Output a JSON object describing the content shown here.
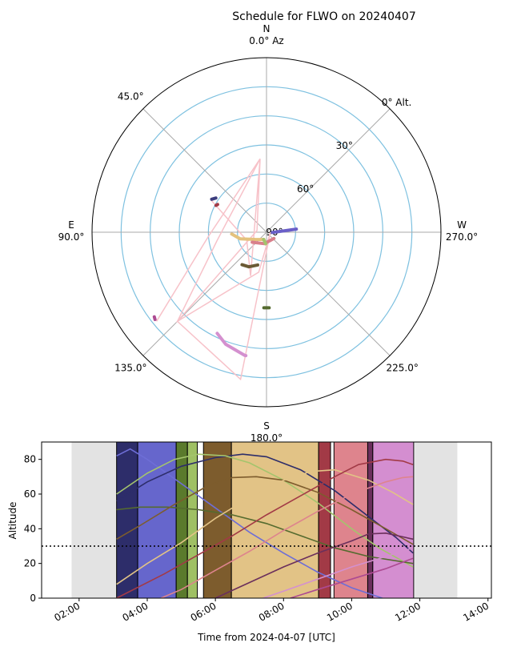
{
  "chart_data": [
    {
      "type": "polar-scatter",
      "title": "Schedule for FLWO on 20240407",
      "azimuth_labels": [
        {
          "az": 0,
          "line1": "N",
          "line2": "0.0° Az"
        },
        {
          "az": 45,
          "line1": "45.0°",
          "line2": ""
        },
        {
          "az": 90,
          "line1": "E",
          "line2": "90.0°"
        },
        {
          "az": 135,
          "line1": "135.0°",
          "line2": ""
        },
        {
          "az": 180,
          "line1": "S",
          "line2": "180.0°"
        },
        {
          "az": 225,
          "line1": "225.0°",
          "line2": ""
        },
        {
          "az": 270,
          "line1": "W",
          "line2": "270.0°"
        }
      ],
      "altitude_labels": [
        {
          "alt": 0,
          "text": "0° Alt."
        },
        {
          "alt": 30,
          "text": "30°"
        },
        {
          "alt": 60,
          "text": "60°"
        },
        {
          "alt": 90,
          "text": "90°"
        }
      ],
      "altitude_rings": [
        0,
        15,
        30,
        45,
        60,
        75
      ],
      "path": [
        {
          "az": 129,
          "alt": 17
        },
        {
          "az": 94,
          "alt": 60
        },
        {
          "az": 5,
          "alt": 52
        },
        {
          "az": 100,
          "alt": 64
        },
        {
          "az": 135,
          "alt": 25
        },
        {
          "az": 169,
          "alt": 69
        },
        {
          "az": 270,
          "alt": 88
        },
        {
          "az": 170,
          "alt": 13
        },
        {
          "az": 135,
          "alt": 25
        },
        {
          "az": 80,
          "alt": 85
        },
        {
          "az": 5,
          "alt": 52
        },
        {
          "az": 160,
          "alt": 66
        },
        {
          "az": 112,
          "alt": 79
        },
        {
          "az": 60,
          "alt": 57
        }
      ],
      "tracks": [
        {
          "color": "#3c3d7e",
          "points": [
            {
              "az": 59,
              "alt": 57
            },
            {
              "az": 56,
              "alt": 58.5
            }
          ]
        },
        {
          "color": "#a23a46",
          "points": [
            {
              "az": 62,
              "alt": 60.5
            },
            {
              "az": 60.5,
              "alt": 61
            }
          ]
        },
        {
          "color": "#6a5fc8",
          "points": [
            {
              "az": 268,
              "alt": 87
            },
            {
              "az": 276,
              "alt": 74.5
            }
          ]
        },
        {
          "color": "#e4c27d",
          "points": [
            {
              "az": 93,
              "alt": 72
            },
            {
              "az": 104,
              "alt": 76
            },
            {
              "az": 122,
              "alt": 83
            },
            {
              "az": 160,
              "alt": 86
            }
          ]
        },
        {
          "color": "#d9808b",
          "points": [
            {
              "az": 125,
              "alt": 81
            },
            {
              "az": 170,
              "alt": 84
            },
            {
              "az": 230,
              "alt": 85
            }
          ]
        },
        {
          "color": "#6b5a35",
          "points": [
            {
              "az": 143,
              "alt": 69
            },
            {
              "az": 153,
              "alt": 70
            },
            {
              "az": 165,
              "alt": 72.5
            }
          ]
        },
        {
          "color": "#a4c46d",
          "points": [
            {
              "az": 158,
              "alt": 86
            },
            {
              "az": 176,
              "alt": 84
            }
          ]
        },
        {
          "color": "#556b2f",
          "points": [
            {
              "az": 182,
              "alt": 51
            },
            {
              "az": 178,
              "alt": 51
            }
          ]
        },
        {
          "color": "#ad4a92",
          "points": [
            {
              "az": 128,
              "alt": 17
            },
            {
              "az": 127,
              "alt": 17.5
            }
          ]
        },
        {
          "color": "#d490cf",
          "points": [
            {
              "az": 154,
              "alt": 32
            },
            {
              "az": 160,
              "alt": 28.5
            },
            {
              "az": 170,
              "alt": 25.5
            },
            {
              "az": 170.5,
              "alt": 25.5
            }
          ]
        }
      ]
    },
    {
      "type": "line",
      "xlabel": "Time from 2024-04-07 [UTC]",
      "ylabel": "Altitude",
      "xlim": [
        0.9,
        14.1
      ],
      "ylim": [
        0,
        90
      ],
      "x_ticks": [
        {
          "value": 2,
          "label": "02:00"
        },
        {
          "value": 4,
          "label": "04:00"
        },
        {
          "value": 6,
          "label": "06:00"
        },
        {
          "value": 8,
          "label": "08:00"
        },
        {
          "value": 10,
          "label": "10:00"
        },
        {
          "value": 12,
          "label": "12:00"
        },
        {
          "value": 14,
          "label": "14:00"
        }
      ],
      "y_ticks": [
        0,
        20,
        40,
        60,
        80
      ],
      "twilight": [
        {
          "start": 1.78,
          "end": 3.1
        },
        {
          "start": 11.85,
          "end": 13.1
        }
      ],
      "blocks": [
        {
          "start": 3.1,
          "end": 3.72,
          "color": "#2d2d6a"
        },
        {
          "start": 3.72,
          "end": 4.85,
          "color": "#6666cc"
        },
        {
          "start": 4.85,
          "end": 5.18,
          "color": "#5a7a2c"
        },
        {
          "start": 5.18,
          "end": 5.47,
          "color": "#9fc064"
        },
        {
          "start": 5.65,
          "end": 6.47,
          "color": "#7d5c2d"
        },
        {
          "start": 6.47,
          "end": 9.03,
          "color": "#e2c386"
        },
        {
          "start": 9.03,
          "end": 9.38,
          "color": "#a23a46"
        },
        {
          "start": 9.48,
          "end": 10.47,
          "color": "#de848d"
        },
        {
          "start": 10.47,
          "end": 10.62,
          "color": "#6b2f5c"
        },
        {
          "start": 10.62,
          "end": 11.82,
          "color": "#d48ed0"
        }
      ],
      "reference_line": 30,
      "series": [
        {
          "color": "#6e6ed6",
          "points": [
            [
              3.1,
              82
            ],
            [
              3.5,
              86
            ],
            [
              4.0,
              80
            ],
            [
              5.0,
              66
            ],
            [
              6.0,
              52
            ],
            [
              7.0,
              38
            ],
            [
              8.0,
              26
            ],
            [
              9.0,
              15
            ],
            [
              10.0,
              6
            ],
            [
              10.9,
              0
            ]
          ]
        },
        {
          "color": "#2d2d6a",
          "points": [
            [
              3.1,
              56
            ],
            [
              4.0,
              67
            ],
            [
              5.0,
              76
            ],
            [
              6.0,
              81
            ],
            [
              6.8,
              83
            ],
            [
              7.5,
              81.5
            ],
            [
              8.5,
              74
            ],
            [
              9.5,
              62
            ],
            [
              10.5,
              47
            ],
            [
              11.3,
              35
            ],
            [
              11.8,
              26
            ]
          ]
        },
        {
          "color": "#a4c46d",
          "points": [
            [
              3.1,
              60
            ],
            [
              4.0,
              72
            ],
            [
              4.8,
              80
            ],
            [
              5.5,
              83
            ],
            [
              6.3,
              82
            ],
            [
              7.0,
              78
            ],
            [
              8.0,
              68
            ],
            [
              9.0,
              55
            ],
            [
              10.0,
              40
            ],
            [
              10.8,
              29
            ],
            [
              11.8,
              18
            ]
          ]
        },
        {
          "color": "#556b2f",
          "points": [
            [
              3.1,
              51
            ],
            [
              3.8,
              52.5
            ],
            [
              4.6,
              52.5
            ],
            [
              5.5,
              51
            ],
            [
              6.5,
              48
            ],
            [
              7.5,
              43
            ],
            [
              8.5,
              36
            ],
            [
              9.5,
              29
            ],
            [
              10.5,
              24
            ],
            [
              11.8,
              20
            ]
          ]
        },
        {
          "color": "#7d5c2d",
          "points": [
            [
              3.1,
              34
            ],
            [
              3.8,
              42
            ],
            [
              4.8,
              54
            ],
            [
              5.8,
              65
            ],
            [
              6.5,
              69.5
            ],
            [
              7.2,
              70
            ],
            [
              8.0,
              68
            ],
            [
              9.0,
              61
            ],
            [
              10.0,
              51
            ],
            [
              11.0,
              40
            ],
            [
              11.8,
              31
            ]
          ]
        },
        {
          "color": "#e2c386",
          "points": [
            [
              3.1,
              8
            ],
            [
              4.0,
              20
            ],
            [
              5.0,
              32
            ],
            [
              6.0,
              46
            ],
            [
              7.0,
              58
            ],
            [
              8.0,
              68
            ],
            [
              8.8,
              73
            ],
            [
              9.5,
              74
            ],
            [
              10.5,
              68
            ],
            [
              11.2,
              61
            ],
            [
              11.8,
              54
            ]
          ]
        },
        {
          "color": "#a23a46",
          "points": [
            [
              3.1,
              0
            ],
            [
              3.4,
              3
            ],
            [
              4.5,
              14
            ],
            [
              5.5,
              25
            ],
            [
              6.5,
              36
            ],
            [
              7.5,
              48
            ],
            [
              8.5,
              59
            ],
            [
              9.5,
              70
            ],
            [
              10.2,
              77
            ],
            [
              11.0,
              80
            ],
            [
              11.5,
              79
            ],
            [
              11.8,
              77
            ]
          ]
        },
        {
          "color": "#de848d",
          "points": [
            [
              4.4,
              0
            ],
            [
              5.0,
              5
            ],
            [
              6.0,
              16
            ],
            [
              7.0,
              27
            ],
            [
              8.0,
              39
            ],
            [
              9.0,
              50
            ],
            [
              10.0,
              60
            ],
            [
              11.0,
              67
            ],
            [
              11.5,
              69.5
            ],
            [
              11.8,
              70
            ]
          ]
        },
        {
          "color": "#6b2f5c",
          "points": [
            [
              6.0,
              0
            ],
            [
              7.0,
              9
            ],
            [
              8.0,
              18
            ],
            [
              9.0,
              26
            ],
            [
              10.0,
              33
            ],
            [
              10.5,
              37
            ],
            [
              11.0,
              37.5
            ],
            [
              11.8,
              34
            ]
          ]
        },
        {
          "color": "#d490cf",
          "points": [
            [
              7.4,
              0
            ],
            [
              8.0,
              4
            ],
            [
              9.0,
              11
            ],
            [
              10.0,
              18
            ],
            [
              11.0,
              24
            ],
            [
              11.8,
              29
            ]
          ]
        },
        {
          "color": "#ad4a92",
          "points": [
            [
              8.2,
              0
            ],
            [
              9.0,
              5
            ],
            [
              10.0,
              11
            ],
            [
              11.0,
              17
            ],
            [
              11.8,
              23
            ]
          ]
        }
      ]
    }
  ]
}
